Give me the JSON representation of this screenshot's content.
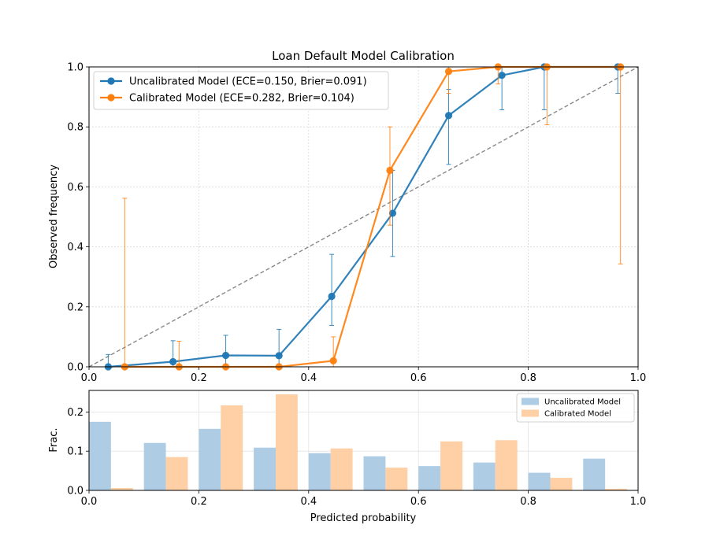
{
  "chart_data": [
    {
      "type": "line",
      "title": "Loan Default Model Calibration",
      "xlabel": "",
      "ylabel": "Observed frequency",
      "xlim": [
        0,
        1
      ],
      "ylim": [
        0,
        1
      ],
      "x_ticks": [
        "0.0",
        "0.2",
        "0.4",
        "0.6",
        "0.8",
        "1.0"
      ],
      "y_ticks": [
        "0.0",
        "0.2",
        "0.4",
        "0.6",
        "0.8",
        "1.0"
      ],
      "grid": true,
      "legend_position": "top-left",
      "reference_line": {
        "x": [
          0,
          1
        ],
        "y": [
          0,
          1
        ],
        "style": "dashed",
        "color": "#888888"
      },
      "series": [
        {
          "name": "Uncalibrated Model (ECE=0.150, Brier=0.091)",
          "color": "#1f77b4",
          "x": [
            0.035,
            0.153,
            0.249,
            0.346,
            0.442,
            0.553,
            0.655,
            0.752,
            0.829,
            0.963
          ],
          "y": [
            0.0,
            0.017,
            0.038,
            0.037,
            0.235,
            0.512,
            0.838,
            0.972,
            1.0,
            1.0
          ],
          "err_low": [
            0.0,
            0.0,
            0.0,
            0.0,
            0.138,
            0.368,
            0.675,
            0.857,
            0.857,
            0.912
          ],
          "err_high": [
            0.041,
            0.087,
            0.105,
            0.125,
            0.375,
            0.655,
            0.925,
            1.0,
            1.0,
            1.0
          ]
        },
        {
          "name": "Calibrated Model (ECE=0.282, Brier=0.104)",
          "color": "#ff7f0e",
          "x": [
            0.065,
            0.164,
            0.249,
            0.346,
            0.445,
            0.548,
            0.655,
            0.745,
            0.834,
            0.968
          ],
          "y": [
            0.0,
            0.0,
            0.0,
            0.0,
            0.02,
            0.655,
            0.985,
            1.0,
            1.0,
            1.0
          ],
          "err_low": [
            0.0,
            0.0,
            0.0,
            0.0,
            0.0,
            0.472,
            0.912,
            0.943,
            0.807,
            0.343
          ],
          "err_high": [
            0.562,
            0.085,
            0.0,
            0.0,
            0.1,
            0.8,
            1.0,
            1.0,
            1.0,
            1.0
          ]
        }
      ]
    },
    {
      "type": "bar",
      "title": "",
      "xlabel": "Predicted probability",
      "ylabel": "Frac.",
      "xlim": [
        0,
        1
      ],
      "ylim": [
        0,
        0.255
      ],
      "x_ticks": [
        "0.0",
        "0.2",
        "0.4",
        "0.6",
        "0.8",
        "1.0"
      ],
      "y_ticks": [
        "0.0",
        "0.1",
        "0.2"
      ],
      "grid": true,
      "legend_position": "top-right",
      "bins": [
        0.0,
        0.1,
        0.2,
        0.3,
        0.4,
        0.5,
        0.6,
        0.7,
        0.8,
        0.9
      ],
      "series": [
        {
          "name": "Uncalibrated Model",
          "color": "#aecde4",
          "values": [
            0.175,
            0.121,
            0.157,
            0.109,
            0.095,
            0.087,
            0.062,
            0.071,
            0.045,
            0.081
          ]
        },
        {
          "name": "Calibrated Model",
          "color": "#ffcfa5",
          "values": [
            0.006,
            0.085,
            0.217,
            0.245,
            0.107,
            0.058,
            0.125,
            0.128,
            0.032,
            0.004
          ]
        }
      ]
    }
  ]
}
